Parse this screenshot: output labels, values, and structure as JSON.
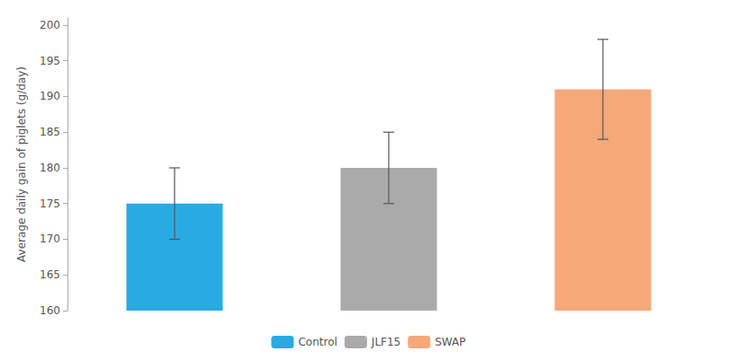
{
  "chart_data": {
    "type": "bar",
    "categories": [
      "Control",
      "JLF15",
      "SWAP"
    ],
    "values": [
      175,
      180,
      191
    ],
    "errors": [
      5,
      5,
      7
    ],
    "colors": [
      "#29ABE2",
      "#AAAAAA",
      "#F5A878"
    ],
    "ylabel": "Average daily gain of piglets (g/day)",
    "ylim": [
      160,
      201
    ],
    "yticks": [
      160,
      165,
      170,
      175,
      180,
      185,
      190,
      195,
      200
    ],
    "grid": false,
    "legend": "bottom",
    "tick_labels": "y"
  }
}
